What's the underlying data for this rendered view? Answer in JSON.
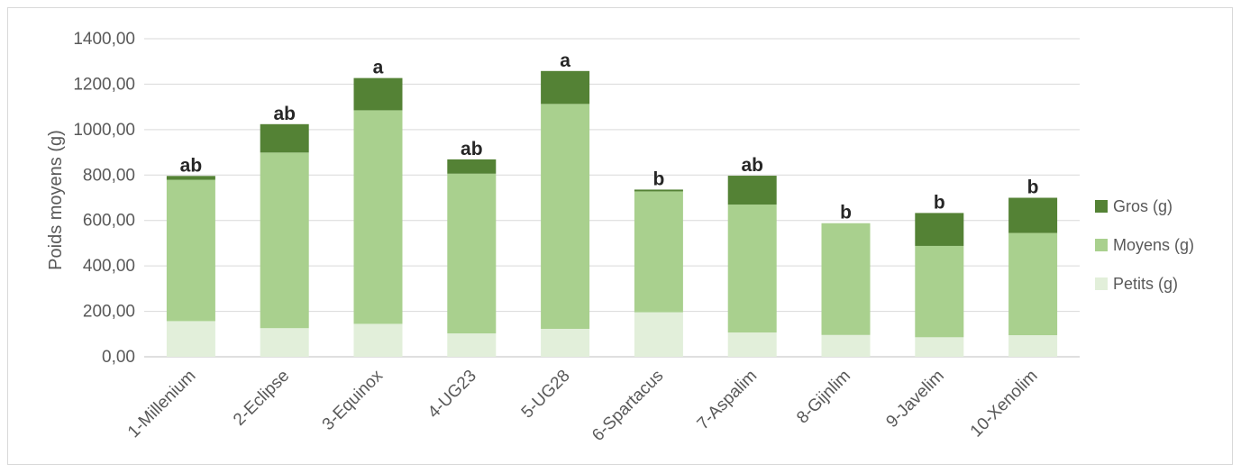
{
  "chart_data": {
    "type": "bar",
    "stacked": true,
    "title": "",
    "xlabel": "",
    "ylabel": "Poids moyens (g)",
    "ylim": [
      0,
      1400
    ],
    "yticks": [
      "0,00",
      "200,00",
      "400,00",
      "600,00",
      "800,00",
      "1000,00",
      "1200,00",
      "1400,00"
    ],
    "grid": true,
    "legend_position": "right",
    "categories": [
      "1-Millenium",
      "2-Eclipse",
      "3-Equinox",
      "4-UG23",
      "5-UG28",
      "6-Spartacus",
      "7-Aspalim",
      "8-Gijnlim",
      "9-Javelim",
      "10-Xenolim"
    ],
    "series": [
      {
        "name": "Petits (g)",
        "color": "#e2efda",
        "values": [
          157,
          126,
          145,
          103,
          123,
          196,
          107,
          96,
          86,
          95
        ]
      },
      {
        "name": "Moyens (g)",
        "color": "#a9d08e",
        "values": [
          622,
          773,
          940,
          703,
          990,
          532,
          563,
          492,
          402,
          450
        ]
      },
      {
        "name": "Gros (g)",
        "color": "#548235",
        "values": [
          17,
          125,
          142,
          63,
          145,
          8,
          127,
          0,
          145,
          155
        ]
      }
    ],
    "annotations": [
      "ab",
      "ab",
      "a",
      "ab",
      "a",
      "b",
      "ab",
      "b",
      "b",
      "b"
    ]
  }
}
